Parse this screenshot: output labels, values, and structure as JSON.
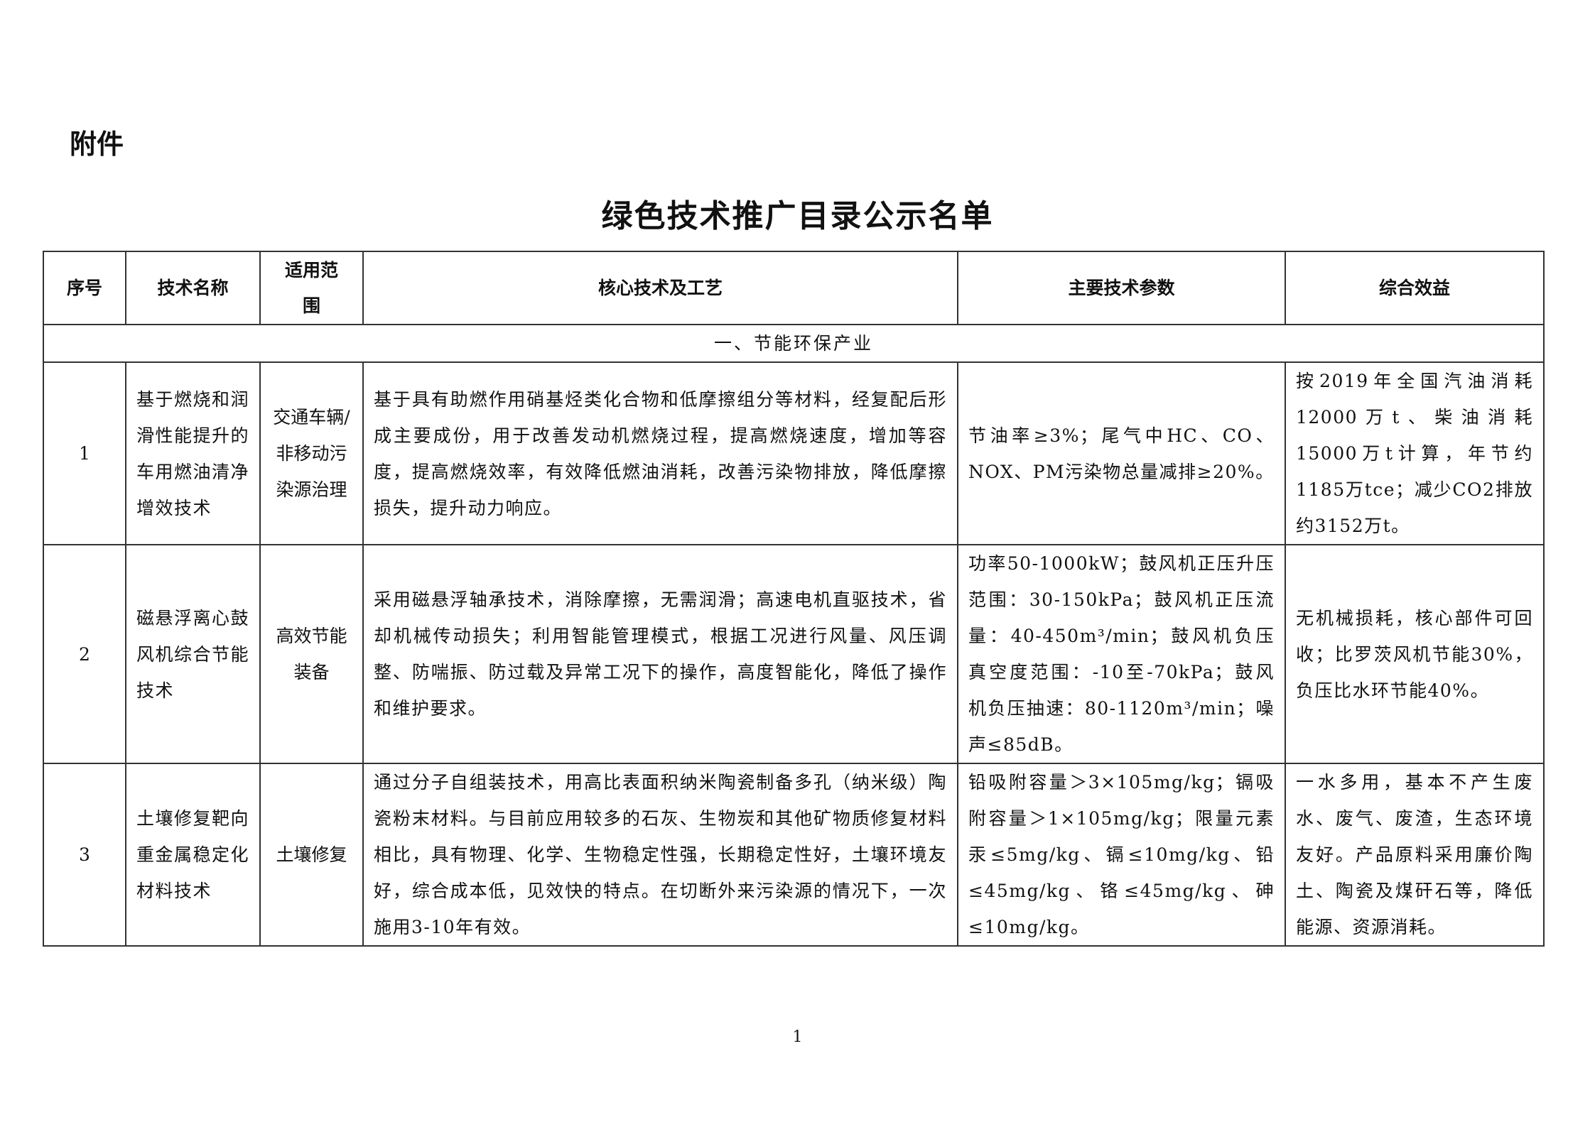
{
  "attachment_label": "附件",
  "title": "绿色技术推广目录公示名单",
  "table": {
    "headers": [
      "序号",
      "技术名称",
      "适用范围",
      "核心技术及工艺",
      "主要技术参数",
      "综合效益"
    ],
    "section": "一、节能环保产业",
    "rows": [
      {
        "no": "1",
        "name": "基于燃烧和润滑性能提升的车用燃油清净增效技术",
        "scope": "交通车辆/非移动污染源治理",
        "core": "基于具有助燃作用硝基烃类化合物和低摩擦组分等材料，经复配后形成主要成份，用于改善发动机燃烧过程，提高燃烧速度，增加等容度，提高燃烧效率，有效降低燃油消耗，改善污染物排放，降低摩擦损失，提升动力响应。",
        "params": "节油率≥3%；尾气中HC、CO、NOX、PM污染物总量减排≥20%。",
        "benefit": "按2019年全国汽油消耗12000万t、柴油消耗15000万t计算，年节约1185万tce；减少CO2排放约3152万t。"
      },
      {
        "no": "2",
        "name": "磁悬浮离心鼓风机综合节能技术",
        "scope": "高效节能装备",
        "core": "采用磁悬浮轴承技术，消除摩擦，无需润滑；高速电机直驱技术，省却机械传动损失；利用智能管理模式，根据工况进行风量、风压调整、防喘振、防过载及异常工况下的操作，高度智能化，降低了操作和维护要求。",
        "params": "功率50-1000kW；鼓风机正压升压范围：30-150kPa；鼓风机正压流量：40-450m³/min；鼓风机负压真空度范围：-10至-70kPa；鼓风机负压抽速：80-1120m³/min；噪声≤85dB。",
        "benefit": "无机械损耗，核心部件可回收；比罗茨风机节能30%，负压比水环节能40%。"
      },
      {
        "no": "3",
        "name": "土壤修复靶向重金属稳定化材料技术",
        "scope": "土壤修复",
        "core": "通过分子自组装技术，用高比表面积纳米陶瓷制备多孔（纳米级）陶瓷粉末材料。与目前应用较多的石灰、生物炭和其他矿物质修复材料相比，具有物理、化学、生物稳定性强，长期稳定性好，土壤环境友好，综合成本低，见效快的特点。在切断外来污染源的情况下，一次施用3-10年有效。",
        "params": "铅吸附容量＞3×105mg/kg；镉吸附容量＞1×105mg/kg；限量元素汞≤5mg/kg、镉≤10mg/kg、铅≤45mg/kg、铬≤45mg/kg、砷≤10mg/kg。",
        "benefit": "一水多用，基本不产生废水、废气、废渣，生态环境友好。产品原料采用廉价陶土、陶瓷及煤矸石等，降低能源、资源消耗。"
      }
    ]
  },
  "page_number": "1"
}
